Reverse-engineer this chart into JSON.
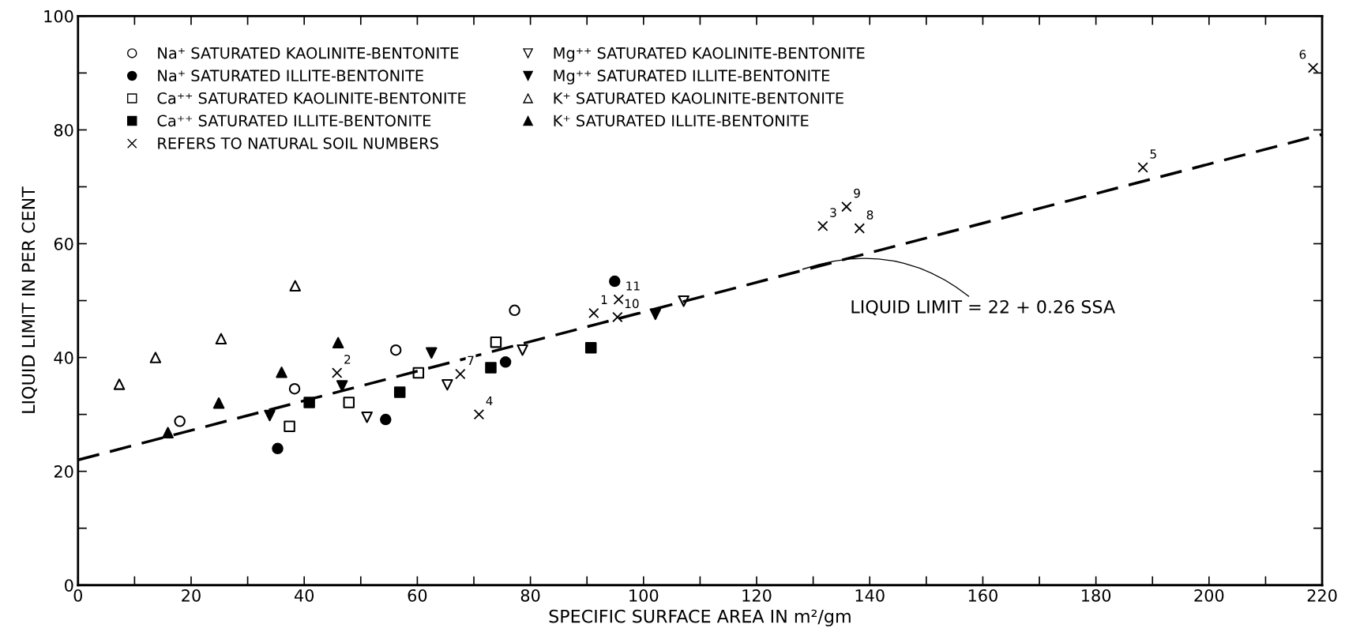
{
  "chart_data": {
    "type": "scatter",
    "xlabel": "SPECIFIC SURFACE AREA IN m²/gm",
    "ylabel": "LIQUID LIMIT IN PER CENT",
    "xlim": [
      0,
      220
    ],
    "ylim": [
      0,
      100
    ],
    "xticks": [
      0,
      {
        "value": 10,
        "label": null
      },
      20,
      {
        "value": 30,
        "label": null
      },
      40,
      {
        "value": 50,
        "label": null
      },
      60,
      {
        "value": 70,
        "label": null
      },
      80,
      {
        "value": 90,
        "label": null
      },
      100,
      {
        "value": 110,
        "label": null
      },
      120,
      {
        "value": 130,
        "label": null
      },
      140,
      {
        "value": 150,
        "label": null
      },
      160,
      {
        "value": 170,
        "label": null
      },
      180,
      {
        "value": 190,
        "label": null
      },
      200,
      {
        "value": 210,
        "label": null
      },
      220
    ],
    "yticks": [
      0,
      {
        "value": 10,
        "label": null
      },
      20,
      {
        "value": 30,
        "label": null
      },
      40,
      {
        "value": 50,
        "label": null
      },
      60,
      {
        "value": 70,
        "label": null
      },
      80,
      {
        "value": 90,
        "label": null
      },
      100
    ],
    "grid": false,
    "legend": "top left",
    "series": [
      {
        "name": "Na⁺ SATURATED KAOLINITE-BENTONITE",
        "color": "#000000",
        "marker": "circle-open",
        "x": [
          18.0,
          38.3,
          56.2,
          77.2
        ],
        "values": [
          28.8,
          34.5,
          41.3,
          48.3
        ]
      },
      {
        "name": "Na⁺ SATURATED ILLITE-BENTONITE",
        "color": "#000000",
        "marker": "circle",
        "x": [
          35.3,
          54.4,
          75.6,
          94.9
        ],
        "values": [
          24.0,
          29.1,
          39.2,
          53.4
        ]
      },
      {
        "name": "Ca⁺⁺ SATURATED KAOLINITE-BENTONITE",
        "color": "#000000",
        "marker": "square-open",
        "x": [
          37.4,
          47.9,
          60.2,
          73.9
        ],
        "values": [
          27.9,
          32.1,
          37.3,
          42.7
        ]
      },
      {
        "name": "Ca⁺⁺ SATURATED ILLITE-BENTONITE",
        "color": "#000000",
        "marker": "square",
        "x": [
          40.9,
          56.9,
          73.0,
          90.7
        ],
        "values": [
          32.1,
          33.9,
          38.2,
          41.7
        ]
      },
      {
        "name": "REFERS TO NATURAL SOIL NUMBERS",
        "color": "#000000",
        "marker": "cross",
        "x": [
          91.2,
          45.8,
          131.7,
          70.9,
          188.3,
          218.4,
          67.6,
          138.2,
          135.9,
          95.4,
          95.6
        ],
        "values": [
          47.8,
          37.3,
          63.1,
          30.0,
          73.4,
          90.9,
          37.1,
          62.7,
          66.5,
          47.1,
          50.2
        ]
      },
      {
        "name": "Mg⁺⁺ SATURATED KAOLINITE-BENTONITE",
        "color": "#000000",
        "marker": "triangle_down-open",
        "x": [
          51.1,
          65.3,
          78.6,
          107.1
        ],
        "values": [
          29.5,
          35.2,
          41.3,
          49.9
        ]
      },
      {
        "name": "Mg⁺⁺ SATURATED ILLITE-BENTONITE",
        "color": "#000000",
        "marker": "triangle_down",
        "x": [
          33.9,
          46.7,
          62.5,
          102.1
        ],
        "values": [
          29.8,
          35.0,
          40.8,
          47.6
        ]
      },
      {
        "name": "K⁺ SATURATED KAOLINITE-BENTONITE",
        "color": "#000000",
        "marker": "triangle-open",
        "x": [
          7.3,
          13.7,
          25.3,
          38.4
        ],
        "values": [
          35.3,
          40.0,
          43.3,
          52.6
        ]
      },
      {
        "name": "K⁺ SATURATED ILLITE-BENTONITE",
        "color": "#000000",
        "marker": "triangle",
        "x": [
          15.9,
          24.9,
          36.0,
          46.0
        ],
        "values": [
          26.8,
          32.0,
          37.4,
          42.6
        ]
      },
      {
        "type": "line",
        "color": "#000000",
        "line_style": "dashed",
        "marker": "none",
        "x": [
          0,
          220
        ],
        "values": [
          22,
          79.2
        ]
      }
    ],
    "annotations": [
      {
        "text": "1",
        "x": 91.2,
        "y": 47.8
      },
      {
        "text": "2",
        "x": 45.8,
        "y": 37.3
      },
      {
        "text": "3",
        "x": 131.7,
        "y": 63.1
      },
      {
        "text": "4",
        "x": 70.9,
        "y": 30.0
      },
      {
        "text": "5",
        "x": 188.3,
        "y": 73.4
      },
      {
        "text": "6",
        "x": 218.4,
        "y": 90.9
      },
      {
        "text": "7",
        "x": 67.6,
        "y": 37.1
      },
      {
        "text": "8",
        "x": 138.2,
        "y": 62.7
      },
      {
        "text": "9",
        "x": 135.9,
        "y": 66.5
      },
      {
        "text": "10",
        "x": 95.4,
        "y": 47.1
      },
      {
        "text": "11",
        "x": 95.6,
        "y": 50.2
      },
      {
        "text": "LIQUID LIMIT = 22 + 0.26 SSA",
        "x": 127.8,
        "y": 55.4
      }
    ]
  }
}
